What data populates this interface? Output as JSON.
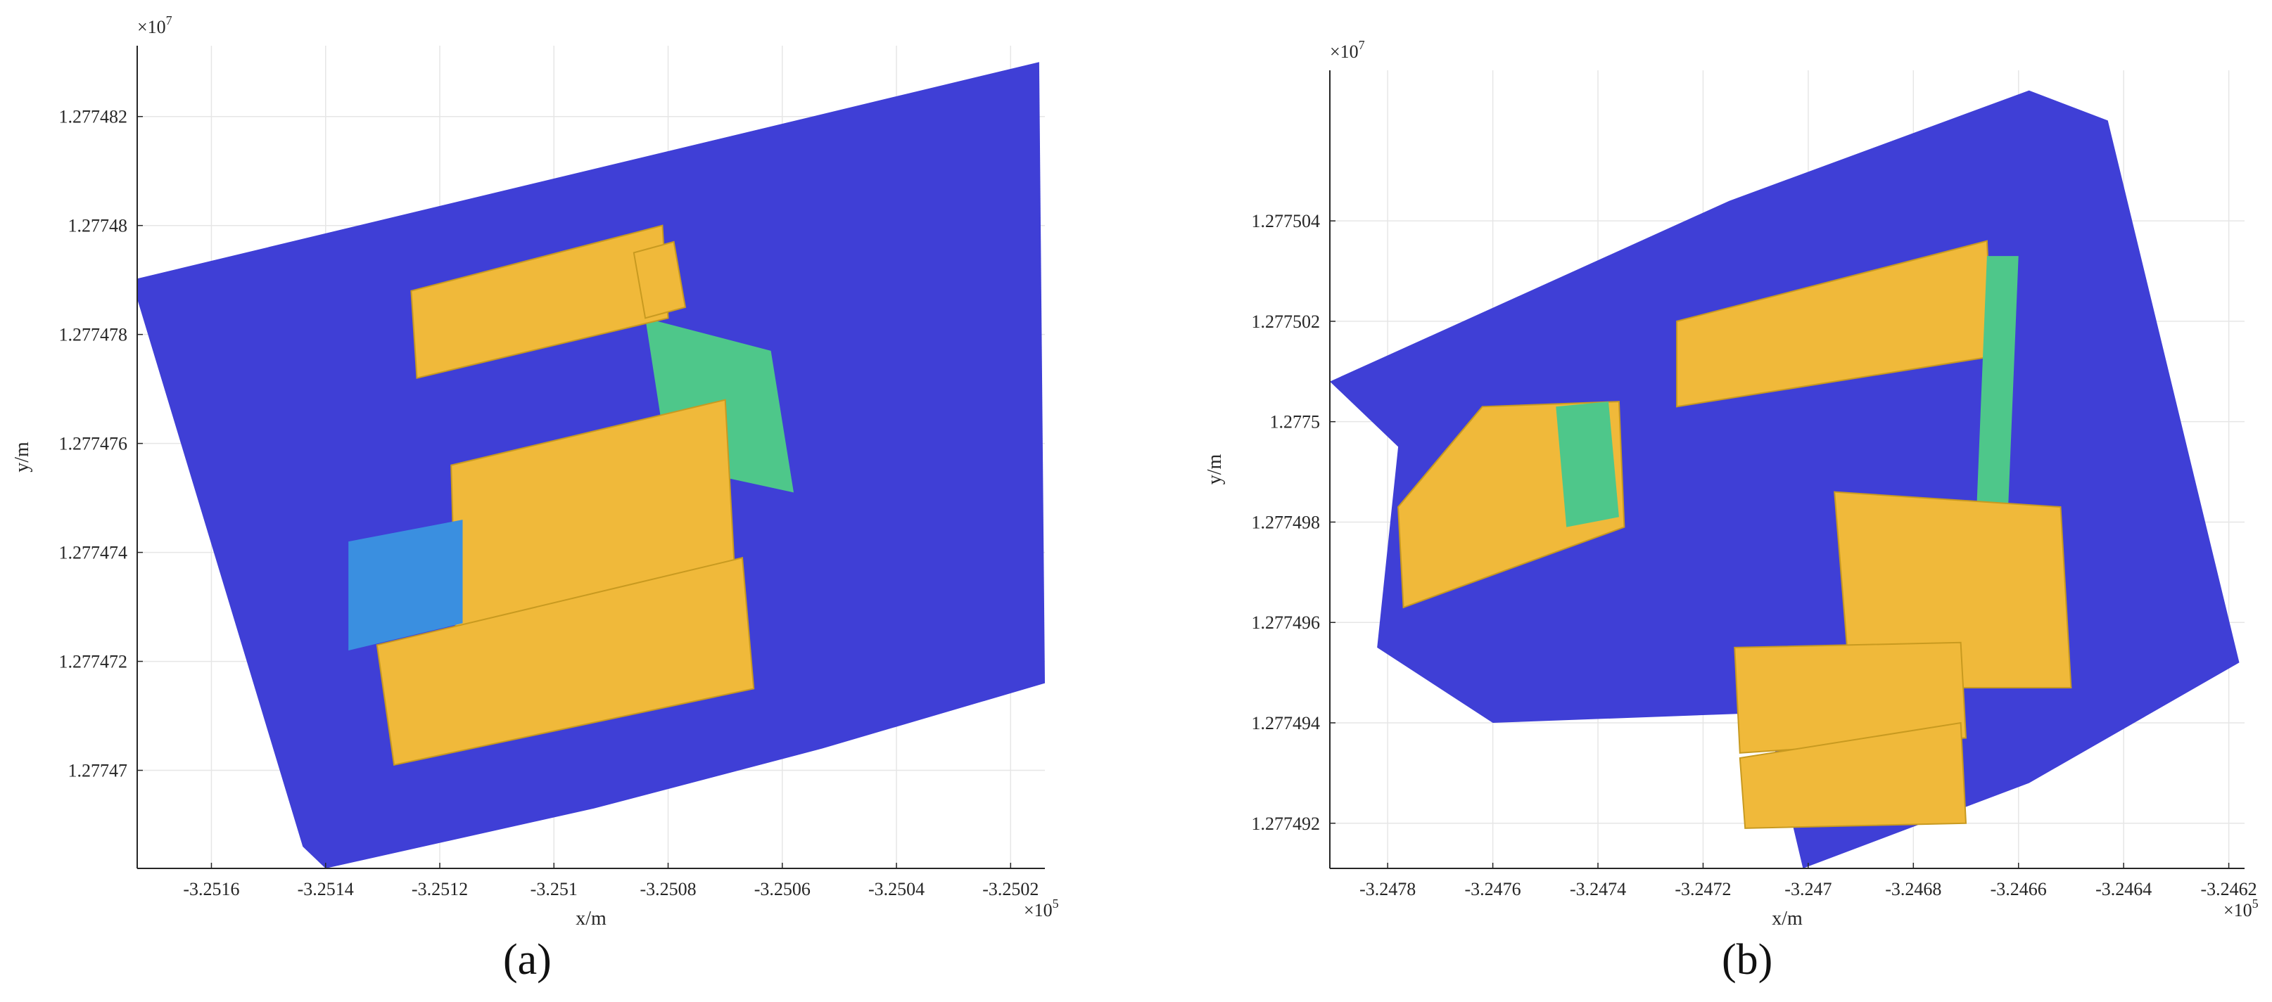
{
  "chart_data": [
    {
      "type": "scatter",
      "caption": "(a)",
      "xlabel": "x/m",
      "ylabel": "y/m",
      "x_exponent_label": "×10",
      "x_exponent_power": "5",
      "y_exponent_label": "×10",
      "y_exponent_power": "7",
      "xlim": [
        -3.25173,
        -3.25014
      ],
      "ylim": [
        1.2774682,
        1.2774833
      ],
      "xticks": [
        -3.2516,
        -3.2514,
        -3.2512,
        -3.251,
        -3.2508,
        -3.2506,
        -3.2504,
        -3.2502
      ],
      "xtick_labels": [
        "-3.2516",
        "-3.2514",
        "-3.2512",
        "-3.251",
        "-3.2508",
        "-3.2506",
        "-3.2504",
        "-3.2502"
      ],
      "yticks": [
        1.27747,
        1.277472,
        1.277474,
        1.277476,
        1.277478,
        1.27748,
        1.277482
      ],
      "ytick_labels": [
        "1.27747",
        "1.277472",
        "1.277474",
        "1.277476",
        "1.277478",
        "1.27748",
        "1.277482"
      ],
      "grid": true,
      "colors": {
        "ground": "#3f3fd6",
        "vegetation": "#3a8fe0",
        "roof_low": "#4ec78a",
        "roof_high": "#f0b93a"
      },
      "regions": [
        {
          "name": "ground",
          "polygon": [
            [
              -3.25174,
              1.277479
            ],
            [
              -3.25015,
              1.277483
            ],
            [
              -3.25014,
              1.2774716
            ],
            [
              -3.25053,
              1.2774704
            ],
            [
              -3.25093,
              1.2774693
            ],
            [
              -3.2514,
              1.2774682
            ],
            [
              -3.25144,
              1.2774686
            ]
          ]
        },
        {
          "name": "roof_low",
          "polygon": [
            [
              -3.25084,
              1.2774783
            ],
            [
              -3.25062,
              1.2774777
            ],
            [
              -3.25058,
              1.2774751
            ],
            [
              -3.2508,
              1.2774756
            ]
          ]
        },
        {
          "name": "roof_high",
          "polygon": [
            [
              -3.25125,
              1.2774788
            ],
            [
              -3.25081,
              1.27748
            ],
            [
              -3.2508,
              1.2774783
            ],
            [
              -3.25124,
              1.2774772
            ]
          ]
        },
        {
          "name": "roof_high",
          "polygon": [
            [
              -3.25086,
              1.2774795
            ],
            [
              -3.25079,
              1.2774797
            ],
            [
              -3.25077,
              1.2774785
            ],
            [
              -3.25084,
              1.2774783
            ]
          ]
        },
        {
          "name": "roof_high",
          "polygon": [
            [
              -3.25118,
              1.2774756
            ],
            [
              -3.2507,
              1.2774768
            ],
            [
              -3.25068,
              1.277473
            ],
            [
              -3.25117,
              1.2774718
            ]
          ]
        },
        {
          "name": "roof_high",
          "polygon": [
            [
              -3.25131,
              1.2774723
            ],
            [
              -3.25067,
              1.2774739
            ],
            [
              -3.25065,
              1.2774715
            ],
            [
              -3.25128,
              1.2774701
            ]
          ]
        },
        {
          "name": "vegetation",
          "polygon": [
            [
              -3.25136,
              1.2774742
            ],
            [
              -3.25116,
              1.2774746
            ],
            [
              -3.25116,
              1.2774727
            ],
            [
              -3.25136,
              1.2774722
            ]
          ]
        }
      ]
    },
    {
      "type": "scatter",
      "caption": "(b)",
      "xlabel": "x/m",
      "ylabel": "y/m",
      "x_exponent_label": "×10",
      "x_exponent_power": "5",
      "y_exponent_label": "×10",
      "y_exponent_power": "7",
      "xlim": [
        -3.24791,
        -3.24617
      ],
      "ylim": [
        1.2774911,
        1.277507
      ],
      "xticks": [
        -3.2478,
        -3.2476,
        -3.2474,
        -3.2472,
        -3.247,
        -3.2468,
        -3.2466,
        -3.2464,
        -3.2462
      ],
      "xtick_labels": [
        "-3.2478",
        "-3.2476",
        "-3.2474",
        "-3.2472",
        "-3.247",
        "-3.2468",
        "-3.2466",
        "-3.2464",
        "-3.2462"
      ],
      "yticks": [
        1.277492,
        1.277494,
        1.277496,
        1.277498,
        1.2775,
        1.277502,
        1.277504
      ],
      "ytick_labels": [
        "1.277492",
        "1.277494",
        "1.277496",
        "1.277498",
        "1.2775",
        "1.277502",
        "1.277504"
      ],
      "grid": true,
      "colors": {
        "ground": "#3f3fd6",
        "vegetation": "#3a8fe0",
        "roof_low": "#4ec78a",
        "roof_high": "#f0b93a"
      },
      "regions": [
        {
          "name": "ground",
          "polygon": [
            [
              -3.24791,
              1.2775008
            ],
            [
              -3.24715,
              1.2775044
            ],
            [
              -3.24658,
              1.2775066
            ],
            [
              -3.24643,
              1.277506
            ],
            [
              -3.24618,
              1.2774952
            ],
            [
              -3.24658,
              1.2774928
            ],
            [
              -3.24701,
              1.2774911
            ],
            [
              -3.24708,
              1.2774942
            ],
            [
              -3.2476,
              1.277494
            ],
            [
              -3.24782,
              1.2774955
            ],
            [
              -3.24778,
              1.2774995
            ]
          ]
        },
        {
          "name": "roof_high",
          "polygon": [
            [
              -3.24725,
              1.277502
            ],
            [
              -3.24666,
              1.2775036
            ],
            [
              -3.24665,
              1.2775013
            ],
            [
              -3.24725,
              1.2775003
            ]
          ]
        },
        {
          "name": "roof_high",
          "polygon": [
            [
              -3.24778,
              1.2774983
            ],
            [
              -3.24762,
              1.2775003
            ],
            [
              -3.24736,
              1.2775004
            ],
            [
              -3.24735,
              1.2774979
            ],
            [
              -3.24777,
              1.2774963
            ]
          ]
        },
        {
          "name": "roof_low",
          "polygon": [
            [
              -3.24748,
              1.2775003
            ],
            [
              -3.24738,
              1.2775004
            ],
            [
              -3.24736,
              1.2774981
            ],
            [
              -3.24746,
              1.2774979
            ]
          ]
        },
        {
          "name": "roof_low",
          "polygon": [
            [
              -3.24666,
              1.2775033
            ],
            [
              -3.2466,
              1.2775033
            ],
            [
              -3.24662,
              1.2774982
            ],
            [
              -3.24668,
              1.2774982
            ]
          ]
        },
        {
          "name": "roof_high",
          "polygon": [
            [
              -3.24695,
              1.2774986
            ],
            [
              -3.24652,
              1.2774983
            ],
            [
              -3.2465,
              1.2774947
            ],
            [
              -3.24692,
              1.2774947
            ]
          ]
        },
        {
          "name": "roof_high",
          "polygon": [
            [
              -3.24714,
              1.2774955
            ],
            [
              -3.24671,
              1.2774956
            ],
            [
              -3.2467,
              1.2774937
            ],
            [
              -3.24713,
              1.2774934
            ]
          ]
        },
        {
          "name": "roof_high",
          "polygon": [
            [
              -3.24713,
              1.2774933
            ],
            [
              -3.24671,
              1.277494
            ],
            [
              -3.2467,
              1.277492
            ],
            [
              -3.24712,
              1.2774919
            ]
          ]
        }
      ]
    }
  ]
}
